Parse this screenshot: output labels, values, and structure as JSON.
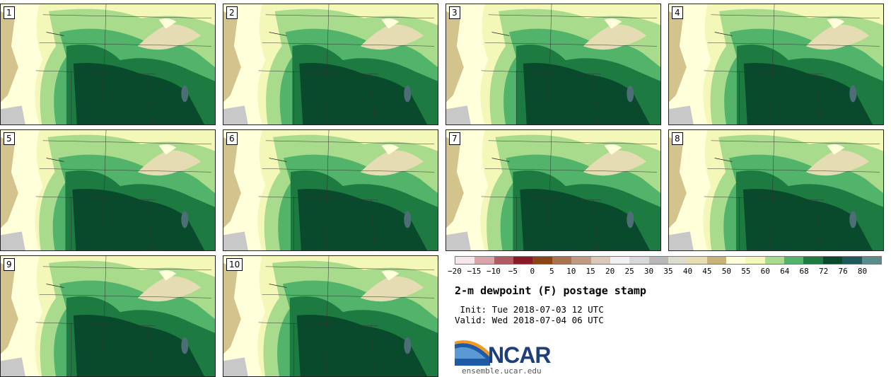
{
  "title": "2-m dewpoint (F) postage stamp",
  "init": " Init: Tue 2018-07-03 12 UTC",
  "valid": "Valid: Wed 2018-07-04 06 UTC",
  "logo_text": "NCAR",
  "website": "ensemble.ucar.edu",
  "panels": [
    {
      "label": "1",
      "moist": 0.55
    },
    {
      "label": "2",
      "moist": 0.7
    },
    {
      "label": "3",
      "moist": 0.75
    },
    {
      "label": "4",
      "moist": 0.65
    },
    {
      "label": "5",
      "moist": 0.5
    },
    {
      "label": "6",
      "moist": 0.62
    },
    {
      "label": "7",
      "moist": 0.6
    },
    {
      "label": "8",
      "moist": 0.62
    },
    {
      "label": "9",
      "moist": 0.55
    },
    {
      "label": "10",
      "moist": 0.58
    }
  ],
  "legend": {
    "colors": [
      "#f5e6ea",
      "#d9a4ac",
      "#b05a62",
      "#8a1b25",
      "#8b4513",
      "#a8714f",
      "#c29a82",
      "#dcc8b8",
      "#f0f0f0",
      "#d8d8d8",
      "#b8b8b8",
      "#dcdccc",
      "#e6dcb4",
      "#c8b478",
      "#ffffd9",
      "#f3f7b8",
      "#a8dc8c",
      "#52b46a",
      "#1d7a40",
      "#0a4a2c",
      "#1f5a5a",
      "#5a8c8c"
    ],
    "ticks": [
      "−20",
      "−15",
      "−10",
      "−5",
      "0",
      "5",
      "10",
      "15",
      "20",
      "25",
      "30",
      "35",
      "40",
      "45",
      "50",
      "55",
      "60",
      "64",
      "68",
      "72",
      "76",
      "80"
    ]
  },
  "colors": {
    "very_dry": "#c8b478",
    "dry_tan": "#e6dcb4",
    "pale": "#ffffd9",
    "light_yellow": "#f3f7b8",
    "light_green": "#a8dc8c",
    "mid_green": "#52b46a",
    "green": "#1d7a40",
    "dark_green": "#0a4a2c",
    "lake": "#4d6e76",
    "ncar_blue": "#1f3f7a"
  }
}
